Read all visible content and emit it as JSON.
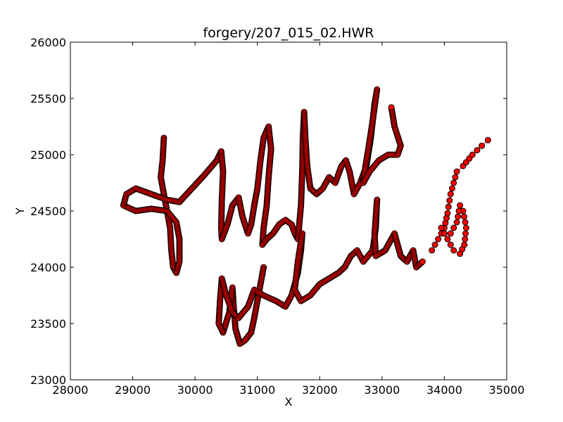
{
  "chart_data": {
    "type": "scatter",
    "title": "forgery/207_015_02.HWR",
    "xlabel": "X",
    "ylabel": "Y",
    "xlim": [
      28000,
      35000
    ],
    "ylim": [
      23000,
      26000
    ],
    "xticks": [
      28000,
      29000,
      30000,
      31000,
      32000,
      33000,
      34000,
      35000
    ],
    "yticks": [
      23000,
      23500,
      24000,
      24500,
      25000,
      25500,
      26000
    ],
    "xtick_labels": [
      "28000",
      "29000",
      "30000",
      "31000",
      "32000",
      "33000",
      "34000",
      "35000"
    ],
    "ytick_labels": [
      "23000",
      "23500",
      "24000",
      "24500",
      "25000",
      "25500",
      "26000"
    ],
    "marker_color": "#ff0000",
    "marker_edge_color": "#000000",
    "line_color": "#ff0000",
    "series": [
      {
        "name": "stroke",
        "points": [
          [
            29500,
            25150
          ],
          [
            29480,
            24950
          ],
          [
            29450,
            24800
          ],
          [
            29500,
            24650
          ],
          [
            29550,
            24500
          ],
          [
            29600,
            24350
          ],
          [
            29620,
            24150
          ],
          [
            29650,
            24000
          ],
          [
            29700,
            23950
          ],
          [
            29750,
            24050
          ],
          [
            29750,
            24250
          ],
          [
            29700,
            24400
          ],
          [
            29550,
            24500
          ],
          [
            29300,
            24520
          ],
          [
            29050,
            24500
          ],
          [
            28850,
            24550
          ],
          [
            28900,
            24650
          ],
          [
            29050,
            24700
          ],
          [
            29300,
            24650
          ],
          [
            29550,
            24600
          ],
          [
            29750,
            24580
          ],
          [
            29950,
            24700
          ],
          [
            30150,
            24820
          ],
          [
            30350,
            24950
          ],
          [
            30420,
            25030
          ],
          [
            30450,
            24850
          ],
          [
            30430,
            24600
          ],
          [
            30420,
            24350
          ],
          [
            30430,
            24250
          ],
          [
            30520,
            24380
          ],
          [
            30600,
            24550
          ],
          [
            30700,
            24620
          ],
          [
            30760,
            24450
          ],
          [
            30850,
            24300
          ],
          [
            30900,
            24380
          ],
          [
            30950,
            24550
          ],
          [
            31000,
            24700
          ],
          [
            31050,
            24950
          ],
          [
            31100,
            25150
          ],
          [
            31180,
            25250
          ],
          [
            31220,
            25050
          ],
          [
            31180,
            24800
          ],
          [
            31150,
            24550
          ],
          [
            31100,
            24350
          ],
          [
            31080,
            24200
          ],
          [
            31150,
            24250
          ],
          [
            31250,
            24300
          ],
          [
            31350,
            24380
          ],
          [
            31450,
            24420
          ],
          [
            31550,
            24380
          ],
          [
            31600,
            24300
          ],
          [
            31650,
            24250
          ],
          [
            31700,
            24550
          ],
          [
            31720,
            24850
          ],
          [
            31730,
            25150
          ],
          [
            31750,
            25380
          ],
          [
            31770,
            25150
          ],
          [
            31800,
            24900
          ],
          [
            31850,
            24700
          ],
          [
            31950,
            24650
          ],
          [
            32050,
            24700
          ],
          [
            32150,
            24800
          ],
          [
            32250,
            24750
          ],
          [
            32350,
            24900
          ],
          [
            32420,
            24950
          ],
          [
            32480,
            24850
          ],
          [
            32550,
            24650
          ],
          [
            32650,
            24750
          ],
          [
            32750,
            24900
          ],
          [
            32820,
            25150
          ],
          [
            32880,
            25450
          ],
          [
            32920,
            25580
          ],
          [
            32850,
            25300
          ],
          [
            32780,
            25050
          ],
          [
            32720,
            24850
          ],
          [
            32700,
            24750
          ],
          [
            32800,
            24850
          ],
          [
            32950,
            24950
          ],
          [
            33100,
            25000
          ],
          [
            33250,
            25000
          ],
          [
            33300,
            25080
          ],
          [
            33200,
            25250
          ],
          [
            33150,
            25420
          ]
        ]
      },
      {
        "name": "stroke",
        "points": [
          [
            31100,
            24000
          ],
          [
            31050,
            23850
          ],
          [
            31000,
            23700
          ],
          [
            30950,
            23550
          ],
          [
            30900,
            23420
          ],
          [
            30800,
            23350
          ],
          [
            30720,
            23320
          ],
          [
            30650,
            23450
          ],
          [
            30620,
            23650
          ],
          [
            30600,
            23820
          ],
          [
            30550,
            23600
          ],
          [
            30450,
            23420
          ],
          [
            30380,
            23500
          ],
          [
            30400,
            23700
          ],
          [
            30430,
            23900
          ],
          [
            30500,
            23750
          ],
          [
            30600,
            23600
          ],
          [
            30700,
            23550
          ],
          [
            30850,
            23650
          ],
          [
            30950,
            23800
          ],
          [
            31100,
            23750
          ],
          [
            31300,
            23700
          ],
          [
            31450,
            23650
          ],
          [
            31550,
            23750
          ],
          [
            31650,
            23950
          ],
          [
            31700,
            24150
          ],
          [
            31720,
            24300
          ],
          [
            31650,
            24050
          ],
          [
            31600,
            23800
          ],
          [
            31700,
            23700
          ],
          [
            31850,
            23750
          ],
          [
            32000,
            23850
          ],
          [
            32150,
            23900
          ],
          [
            32300,
            23950
          ],
          [
            32400,
            24000
          ],
          [
            32500,
            24100
          ],
          [
            32600,
            24150
          ],
          [
            32700,
            24050
          ],
          [
            32850,
            24150
          ],
          [
            32900,
            24350
          ],
          [
            32920,
            24600
          ],
          [
            32880,
            24300
          ],
          [
            32900,
            24100
          ],
          [
            33050,
            24150
          ],
          [
            33200,
            24300
          ],
          [
            33300,
            24100
          ],
          [
            33400,
            24050
          ],
          [
            33500,
            24150
          ],
          [
            33550,
            24000
          ],
          [
            33650,
            24050
          ]
        ]
      },
      {
        "name": "stroke",
        "points": [
          [
            33800,
            24150
          ],
          [
            33900,
            24250
          ],
          [
            34000,
            24350
          ],
          [
            34050,
            24480
          ],
          [
            34100,
            24650
          ],
          [
            34150,
            24750
          ],
          [
            34200,
            24850
          ],
          [
            34300,
            24900
          ],
          [
            34450,
            25000
          ],
          [
            34600,
            25080
          ],
          [
            34700,
            25130
          ]
        ]
      },
      {
        "name": "stroke",
        "points": [
          [
            33950,
            24350
          ],
          [
            34050,
            24250
          ],
          [
            34150,
            24150
          ],
          [
            34250,
            24120
          ],
          [
            34320,
            24200
          ],
          [
            34350,
            24350
          ],
          [
            34300,
            24500
          ],
          [
            34250,
            24550
          ],
          [
            34200,
            24400
          ],
          [
            34100,
            24300
          ],
          [
            34000,
            24300
          ]
        ]
      }
    ]
  }
}
